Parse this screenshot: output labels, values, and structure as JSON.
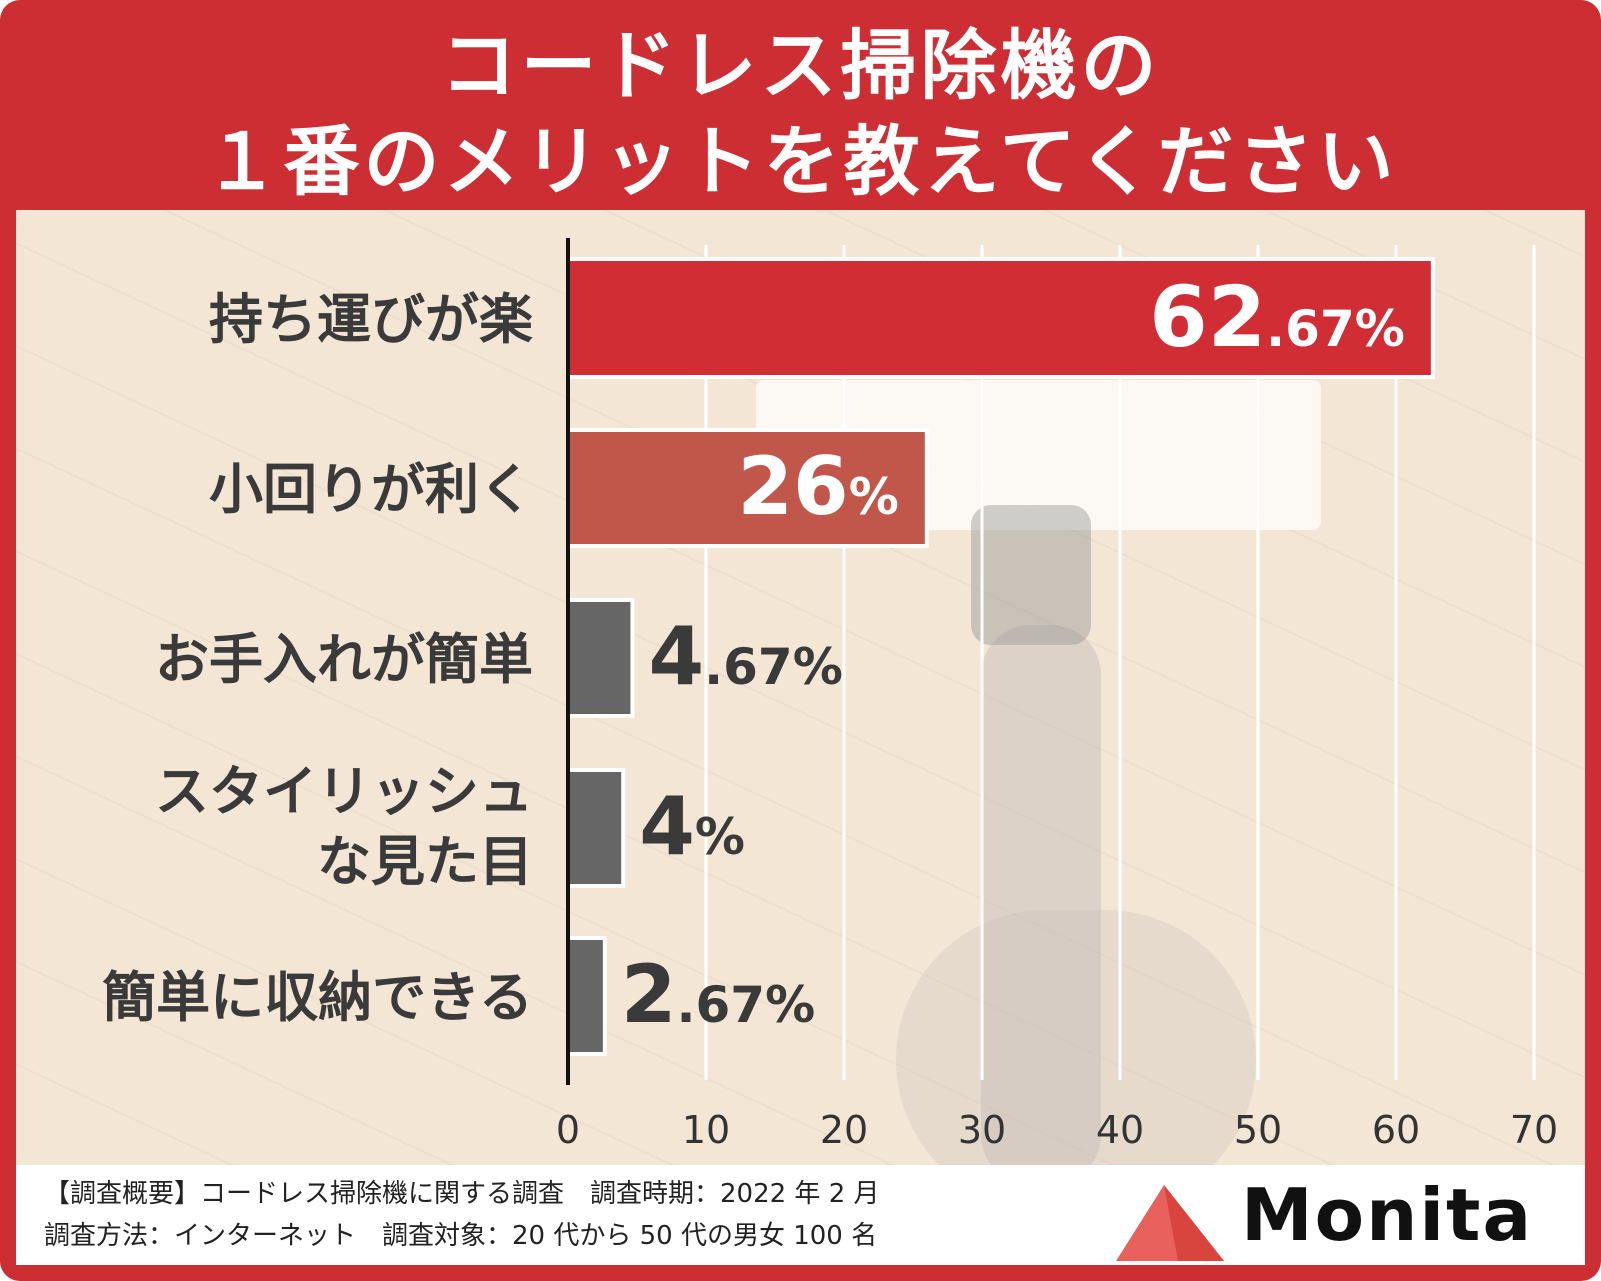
{
  "title_lines": [
    "コードレス掃除機の",
    "１番のメリットを教えてください"
  ],
  "chart_data": {
    "type": "bar",
    "orientation": "horizontal",
    "title": "コードレス掃除機の１番のメリットを教えてください",
    "categories": [
      [
        "持ち運びが楽"
      ],
      [
        "小回りが利く"
      ],
      [
        "お手入れが簡単"
      ],
      [
        "スタイリッシュ",
        "な見た目"
      ],
      [
        "簡単に収納できる"
      ]
    ],
    "values": [
      62.67,
      26,
      4.67,
      4,
      2.67
    ],
    "value_labels": [
      {
        "main": "62",
        "decimal": ".67",
        "unit": "%"
      },
      {
        "main": "26",
        "decimal": "",
        "unit": "%"
      },
      {
        "main": "4",
        "decimal": ".67",
        "unit": "%"
      },
      {
        "main": "4",
        "decimal": "",
        "unit": "%"
      },
      {
        "main": "2",
        "decimal": ".67",
        "unit": "%"
      }
    ],
    "xlim": [
      0,
      70
    ],
    "xticks": [
      0,
      10,
      20,
      30,
      40,
      50,
      60,
      70
    ],
    "grid": true,
    "bar_colors": [
      "#d12d35",
      "#c1564b",
      "#666666",
      "#666666",
      "#666666"
    ]
  },
  "footer": {
    "line1": "【調査概要】コードレス掃除機に関する調査　調査時期：2022 年 2 月",
    "line2": "調査方法：インターネット　調査対象：20 代から 50 代の男女 100 名",
    "logo": "Monita"
  },
  "colors": {
    "frame": "#cc2e33",
    "label_text": "#3a3a3a",
    "logo_mark": "#e8615c"
  }
}
